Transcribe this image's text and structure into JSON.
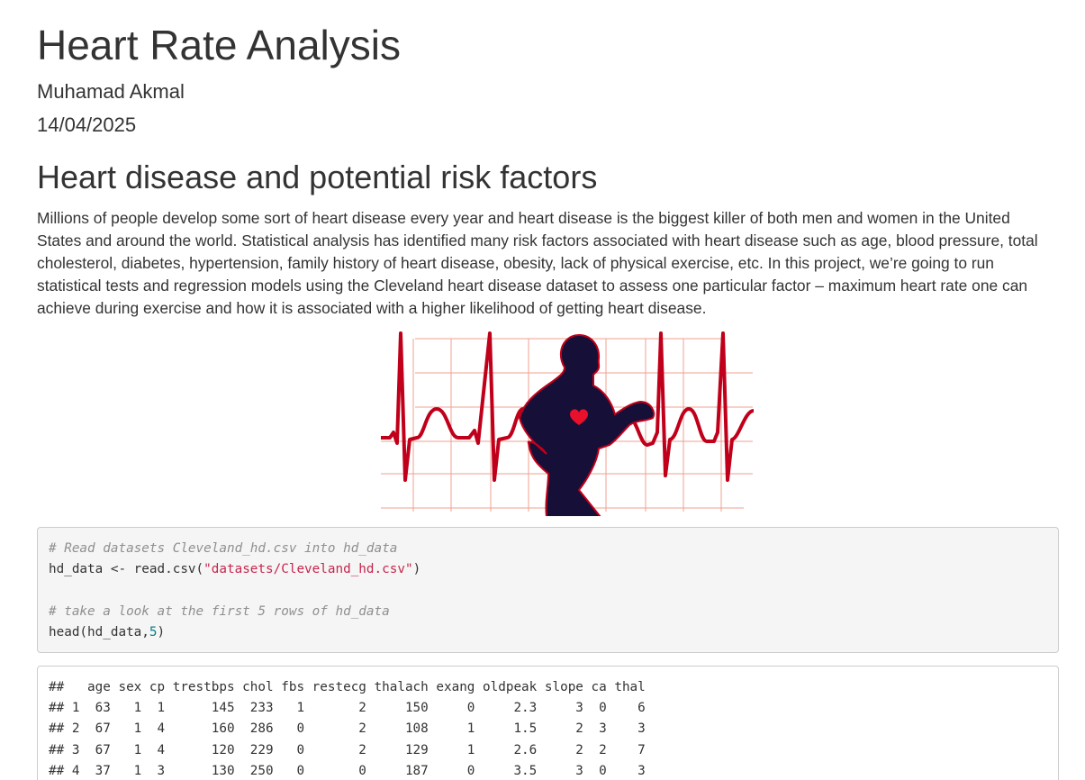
{
  "header": {
    "title": "Heart Rate Analysis",
    "author": "Muhamad Akmal",
    "date": "14/04/2025"
  },
  "section": {
    "heading": "Heart disease and potential risk factors",
    "paragraph": "Millions of people develop some sort of heart disease every year and heart disease is the biggest killer of both men and women in the United States and around the world. Statistical analysis has identified many risk factors associated with heart disease such as age, blood pressure, total cholesterol, diabetes, hypertension, family history of heart disease, obesity, lack of physical exercise, etc. In this project, we’re going to run statistical tests and regression models using the Cleveland heart disease dataset to assess one particular factor – maximum heart rate one can achieve during exercise and how it is associated with a higher likelihood of getting heart disease."
  },
  "figure": {
    "icon": "heart-icon",
    "colors": {
      "ecg": "#c0001a",
      "grid": "#f0a090",
      "runner": "#160f38",
      "heart": "#e8102a"
    }
  },
  "code": {
    "comment1": "# Read datasets Cleveland_hd.csv into hd_data",
    "line2_pre": "hd_data <- read.csv(",
    "line2_str": "\"datasets/Cleveland_hd.csv\"",
    "line2_post": ")",
    "comment2": "# take a look at the first 5 rows of hd_data",
    "line4_pre": "head(hd_data,",
    "line4_num": "5",
    "line4_post": ")"
  },
  "output": {
    "header": "##   age sex cp trestbps chol fbs restecg thalach exang oldpeak slope ca thal",
    "rows": [
      "## 1  63   1  1      145  233   1       2     150     0     2.3     3  0    6",
      "## 2  67   1  4      160  286   0       2     108     1     1.5     2  3    3",
      "## 3  67   1  4      120  229   0       2     129     1     2.6     2  2    7",
      "## 4  37   1  3      130  250   0       0     187     0     3.5     3  0    3"
    ]
  }
}
